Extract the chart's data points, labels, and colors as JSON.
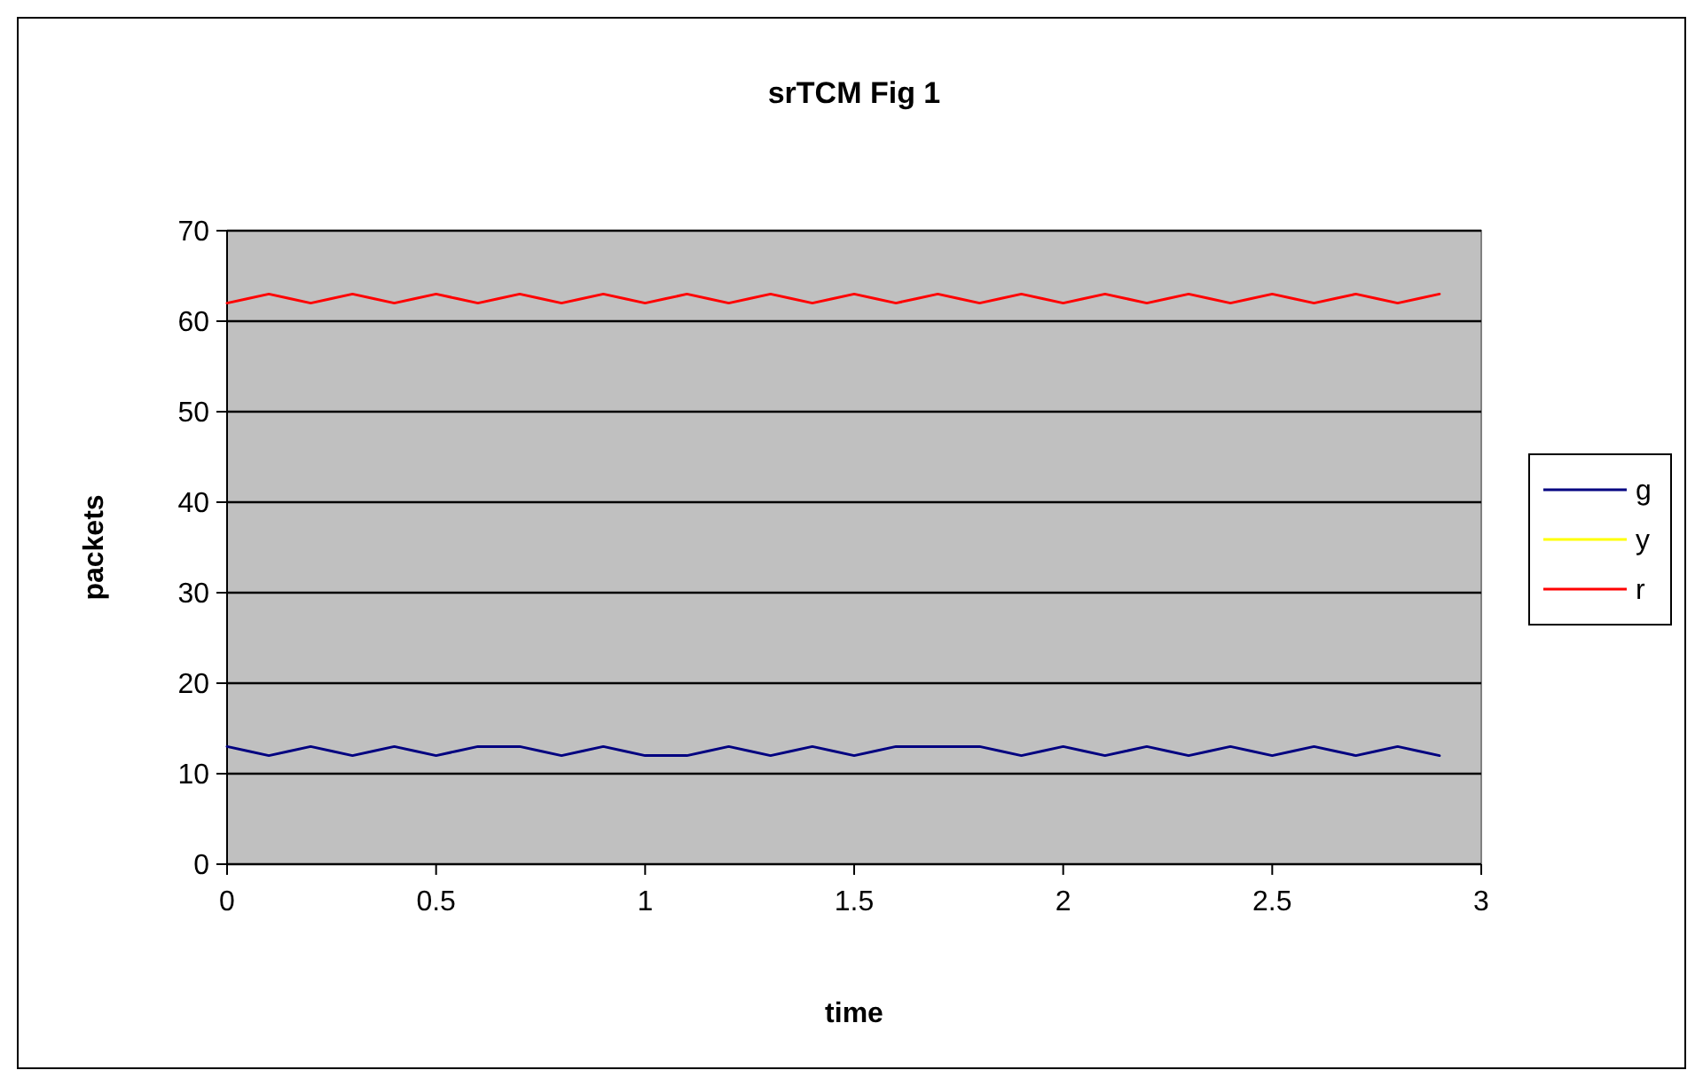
{
  "chart_data": {
    "type": "line",
    "title": "srTCM Fig 1",
    "xlabel": "time",
    "ylabel": "packets",
    "x": [
      0,
      0.05,
      0.1,
      0.15,
      0.2,
      0.25,
      0.3,
      0.35,
      0.4,
      0.45,
      0.5,
      0.55,
      0.6,
      0.65,
      0.7,
      0.75,
      0.8,
      0.85,
      0.9,
      0.95,
      1,
      1.05,
      1.1,
      1.15,
      1.2,
      1.25,
      1.3,
      1.35,
      1.4,
      1.45,
      1.5,
      1.55,
      1.6,
      1.65,
      1.7,
      1.75,
      1.8,
      1.85,
      1.9,
      1.95,
      2,
      2.05,
      2.1,
      2.15,
      2.2,
      2.25,
      2.3,
      2.35,
      2.4,
      2.45,
      2.5,
      2.55,
      2.6,
      2.65,
      2.7,
      2.75,
      2.8,
      2.85,
      2.9
    ],
    "series": [
      {
        "name": "g",
        "color": "#000080",
        "values": [
          13,
          12.5,
          12,
          12.5,
          13,
          12.5,
          12,
          12.5,
          13,
          12.5,
          12,
          12.5,
          13,
          13,
          13,
          12.5,
          12,
          12.5,
          13,
          12.5,
          12,
          12,
          12,
          12.5,
          13,
          12.5,
          12,
          12.5,
          13,
          12.5,
          12,
          12.5,
          13,
          13,
          13,
          13,
          13,
          12.5,
          12,
          12.5,
          13,
          12.5,
          12,
          12.5,
          13,
          12.5,
          12,
          12.5,
          13,
          12.5,
          12,
          12.5,
          13,
          12.5,
          12,
          12.5,
          13,
          12.5,
          12
        ]
      },
      {
        "name": "y",
        "color": "#ffff00",
        "values": [
          null,
          null,
          null,
          null,
          null,
          null,
          null,
          null,
          null,
          null,
          null,
          null,
          null,
          null,
          null,
          null,
          null,
          null,
          null,
          null,
          null,
          null,
          null,
          null,
          null,
          null,
          null,
          null,
          null,
          null,
          null,
          null,
          null,
          null,
          null,
          null,
          null,
          null,
          null,
          null,
          null,
          null,
          null,
          null,
          null,
          null,
          null,
          null,
          null,
          null,
          null,
          null,
          null,
          null,
          null,
          null,
          null,
          null,
          null
        ]
      },
      {
        "name": "r",
        "color": "#ff0000",
        "values": [
          62,
          62.5,
          63,
          62.5,
          62,
          62.5,
          63,
          62.5,
          62,
          62.5,
          63,
          62.5,
          62,
          62.5,
          63,
          62.5,
          62,
          62.5,
          63,
          62.5,
          62,
          62.5,
          63,
          62.5,
          62,
          62.5,
          63,
          62.5,
          62,
          62.5,
          63,
          62.5,
          62,
          62.5,
          63,
          62.5,
          62,
          62.5,
          63,
          62.5,
          62,
          62.5,
          63,
          62.5,
          62,
          62.5,
          63,
          62.5,
          62,
          62.5,
          63,
          62.5,
          62,
          62.5,
          63,
          62.5,
          62,
          62.5,
          63
        ]
      }
    ],
    "xlim": [
      0,
      3
    ],
    "xticks": [
      0,
      0.5,
      1,
      1.5,
      2,
      2.5,
      3
    ],
    "ylim": [
      0,
      70
    ],
    "yticks": [
      0,
      10,
      20,
      30,
      40,
      50,
      60,
      70
    ],
    "grid": "y",
    "legend": "right",
    "marker": "none",
    "line_style": "solid"
  }
}
